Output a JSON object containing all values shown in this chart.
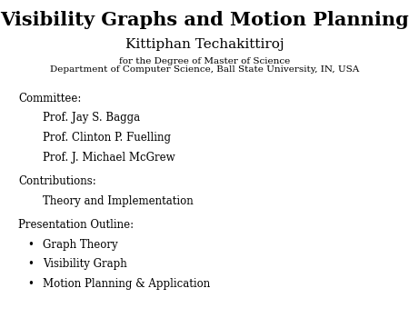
{
  "title": "Visibility Graphs and Motion Planning",
  "author": "Kittiphan Techakittiroj",
  "affiliation_line1": "for the Degree of Master of Science",
  "affiliation_line2": "Department of Computer Science, Ball State University, IN, USA",
  "committee_header": "Committee:",
  "committee_members": [
    "Prof. Jay S. Bagga",
    "Prof. Clinton P. Fuelling",
    "Prof. J. Michael McGrew"
  ],
  "contributions_header": "Contributions:",
  "contributions_items": [
    "Theory and Implementation"
  ],
  "outline_header": "Presentation Outline:",
  "outline_items": [
    "Graph Theory",
    "Visibility Graph",
    "Motion Planning & Application"
  ],
  "bg_color": "#ffffff",
  "text_color": "#000000",
  "title_fontsize": 15,
  "author_fontsize": 11,
  "affil_fontsize": 7.5,
  "body_fontsize": 8.5,
  "bullet_char": "•"
}
